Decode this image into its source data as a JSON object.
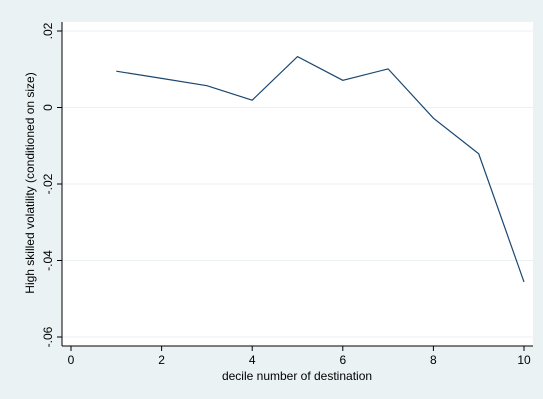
{
  "chart_data": {
    "type": "line",
    "title": "",
    "xlabel": "decile number of destination",
    "ylabel": "High skilled volatility (conditioned on size)",
    "xlim": [
      0,
      10
    ],
    "ylim": [
      -0.06,
      0.02
    ],
    "xticks": [
      0,
      2,
      4,
      6,
      8,
      10
    ],
    "xtick_labels": [
      "0",
      "2",
      "4",
      "6",
      "8",
      "10"
    ],
    "yticks": [
      -0.06,
      -0.04,
      -0.02,
      0,
      0.02
    ],
    "ytick_labels": [
      "-.06",
      "-.04",
      "-.02",
      "0",
      ".02"
    ],
    "grid": "horizontal",
    "series": [
      {
        "x": [
          1,
          2,
          3,
          4,
          5,
          6,
          7,
          8,
          9,
          10
        ],
        "y": [
          0.0095,
          0.0076,
          0.0057,
          0.0019,
          0.0133,
          0.0071,
          0.0101,
          -0.0028,
          -0.0121,
          -0.0456
        ]
      }
    ],
    "colors": {
      "background": "#eaf2f3",
      "plot_area": "#ffffff",
      "line": "#1a476f",
      "grid": "#eaf2f3"
    }
  }
}
